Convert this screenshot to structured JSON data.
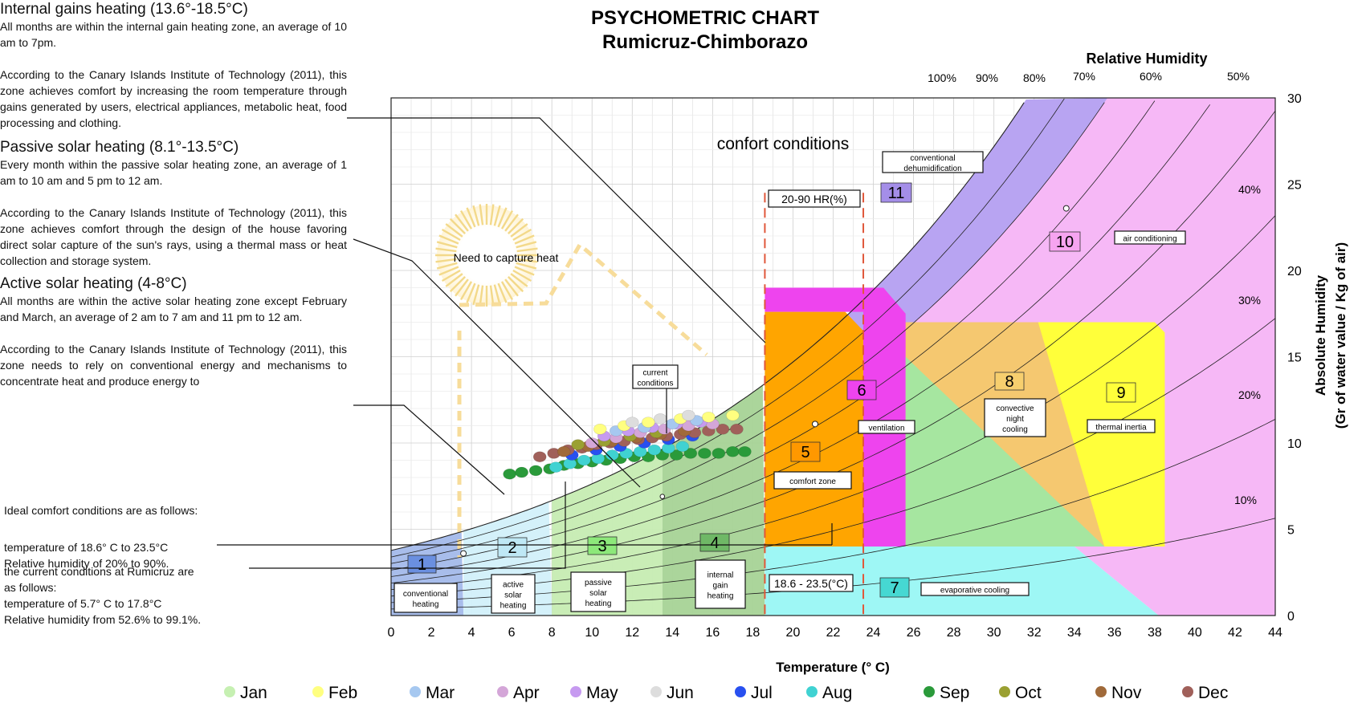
{
  "chart_data": {
    "type": "scatter",
    "title": "PSYCHOMETRIC CHART",
    "subtitle": "Rumicruz-Chimborazo",
    "xlabel": "Temperature (° C)",
    "ylabel": "Absolute Humidity",
    "ylabel2": "(Gr of water value / Kg of air)",
    "rh_axis_title": "Relative Humidity",
    "xlim": [
      0,
      44
    ],
    "ylim": [
      0,
      30
    ],
    "x_ticks": [
      "0",
      "2",
      "4",
      "6",
      "8",
      "10",
      "12",
      "14",
      "16",
      "18",
      "20",
      "22",
      "24",
      "26",
      "28",
      "30",
      "32",
      "34",
      "36",
      "38",
      "40",
      "42",
      "44"
    ],
    "y_ticks": [
      "0",
      "5",
      "10",
      "15",
      "20",
      "25",
      "30"
    ],
    "rh_curves": [
      {
        "label": "100%",
        "rh": 100
      },
      {
        "label": "90%",
        "rh": 90
      },
      {
        "label": "80%",
        "rh": 80
      },
      {
        "label": "70%",
        "rh": 70
      },
      {
        "label": "60%",
        "rh": 60
      },
      {
        "label": "50%",
        "rh": 50
      },
      {
        "label": "40%",
        "rh": 40
      },
      {
        "label": "30%",
        "rh": 30
      },
      {
        "label": "20%",
        "rh": 20
      },
      {
        "label": "10%",
        "rh": 10
      }
    ],
    "comfort_title": "confort conditions",
    "sun_label": "Need to capture heat",
    "rh_range_label": "20-90 HR(%)",
    "temp_range_label": "18.6 - 23.5(°C)",
    "comfort_bounds": {
      "t_min": 18.6,
      "t_max": 23.5
    },
    "zones": [
      {
        "num": "1",
        "label_lines": [
          "conventional",
          "heating"
        ],
        "color": "#b4c8ee"
      },
      {
        "num": "2",
        "label_lines": [
          "active",
          "solar",
          "heating"
        ],
        "color": "#d2f0fa"
      },
      {
        "num": "3",
        "label_lines": [
          "passive",
          "solar",
          "heating"
        ],
        "color": "#c6ecb2"
      },
      {
        "num": "4",
        "label_lines": [
          "internal",
          "gain",
          "heating"
        ],
        "color": "#a6d396"
      },
      {
        "num": "5",
        "label_lines": [
          "comfort zone"
        ],
        "color": "#ffa500"
      },
      {
        "num": "6",
        "label_lines": [
          "ventilation"
        ],
        "color": "#ee44ee"
      },
      {
        "num": "7",
        "label_lines": [
          "evaporative cooling"
        ],
        "color": "#9ef7f5"
      },
      {
        "num": "8",
        "label_lines": [
          "convective",
          "night",
          "cooling"
        ],
        "color": "#f5c870"
      },
      {
        "num": "9",
        "label_lines": [
          "thermal inertia"
        ],
        "color": "#ffff3a"
      },
      {
        "num": "10",
        "label_lines": [
          "air conditioning"
        ],
        "color": "#f6b8f6"
      },
      {
        "num": "11",
        "label_lines": [
          "conventional",
          "dehumidification"
        ],
        "color": "#b8a4f2"
      }
    ],
    "current_conditions_label_lines": [
      "current",
      "conditions"
    ],
    "months": [
      {
        "name": "Jan",
        "color": "#c6f0b2"
      },
      {
        "name": "Feb",
        "color": "#ffff80"
      },
      {
        "name": "Mar",
        "color": "#a6c8f0"
      },
      {
        "name": "Apr",
        "color": "#d4a6d8"
      },
      {
        "name": "May",
        "color": "#c69af0"
      },
      {
        "name": "Jun",
        "color": "#dddddd"
      },
      {
        "name": "Jul",
        "color": "#2850f0"
      },
      {
        "name": "Aug",
        "color": "#40d2d2"
      },
      {
        "name": "Sep",
        "color": "#2a9a3a"
      },
      {
        "name": "Oct",
        "color": "#9aa032"
      },
      {
        "name": "Nov",
        "color": "#a06a3a"
      },
      {
        "name": "Dec",
        "color": "#a0605a"
      }
    ],
    "series": [
      {
        "name": "Sep",
        "color": "#2a9a3a",
        "points": [
          [
            5.9,
            8.2
          ],
          [
            6.5,
            8.3
          ],
          [
            7.2,
            8.4
          ],
          [
            7.9,
            8.5
          ],
          [
            8.6,
            8.7
          ],
          [
            9.3,
            8.8
          ],
          [
            10.0,
            8.9
          ],
          [
            10.7,
            9.0
          ],
          [
            11.4,
            9.1
          ],
          [
            12.1,
            9.2
          ],
          [
            12.8,
            9.2
          ],
          [
            13.5,
            9.3
          ],
          [
            14.2,
            9.3
          ],
          [
            14.9,
            9.4
          ],
          [
            15.6,
            9.4
          ],
          [
            16.3,
            9.4
          ],
          [
            17.0,
            9.5
          ],
          [
            17.6,
            9.5
          ]
        ]
      },
      {
        "name": "Aug",
        "color": "#40d2d2",
        "points": [
          [
            8.2,
            8.6
          ],
          [
            8.9,
            8.8
          ],
          [
            9.6,
            9.0
          ],
          [
            10.3,
            9.1
          ],
          [
            11.0,
            9.3
          ],
          [
            11.7,
            9.4
          ],
          [
            12.4,
            9.5
          ],
          [
            13.1,
            9.6
          ],
          [
            13.8,
            9.7
          ],
          [
            14.5,
            9.8
          ]
        ]
      },
      {
        "name": "Jul",
        "color": "#2850f0",
        "points": [
          [
            9.0,
            9.3
          ],
          [
            10.2,
            9.6
          ],
          [
            11.4,
            9.8
          ],
          [
            12.6,
            10.0
          ],
          [
            13.8,
            10.2
          ],
          [
            15.0,
            10.4
          ]
        ]
      },
      {
        "name": "Dec",
        "color": "#a0605a",
        "points": [
          [
            7.4,
            9.2
          ],
          [
            8.1,
            9.4
          ],
          [
            8.8,
            9.6
          ],
          [
            9.5,
            9.7
          ],
          [
            10.2,
            9.9
          ],
          [
            10.9,
            10.0
          ],
          [
            11.6,
            10.1
          ],
          [
            12.3,
            10.2
          ],
          [
            13.0,
            10.3
          ],
          [
            13.7,
            10.4
          ],
          [
            14.4,
            10.5
          ],
          [
            15.1,
            10.6
          ],
          [
            15.8,
            10.7
          ],
          [
            16.5,
            10.8
          ],
          [
            17.2,
            10.8
          ]
        ]
      },
      {
        "name": "Nov",
        "color": "#a06a3a",
        "points": [
          [
            8.6,
            9.5
          ],
          [
            9.8,
            9.8
          ],
          [
            11.0,
            10.1
          ],
          [
            12.2,
            10.3
          ],
          [
            13.4,
            10.5
          ],
          [
            14.6,
            10.7
          ]
        ]
      },
      {
        "name": "Oct",
        "color": "#9aa032",
        "points": [
          [
            9.3,
            9.9
          ],
          [
            10.6,
            10.1
          ],
          [
            11.9,
            10.4
          ],
          [
            13.2,
            10.6
          ]
        ]
      },
      {
        "name": "Apr",
        "color": "#d4a6d8",
        "points": [
          [
            10.0,
            10.0
          ],
          [
            11.2,
            10.3
          ],
          [
            12.4,
            10.6
          ],
          [
            13.6,
            10.8
          ],
          [
            14.8,
            11.0
          ],
          [
            16.0,
            11.1
          ]
        ]
      },
      {
        "name": "May",
        "color": "#c69af0",
        "points": [
          [
            10.6,
            10.4
          ],
          [
            11.8,
            10.7
          ],
          [
            13.0,
            10.9
          ],
          [
            14.2,
            11.1
          ],
          [
            15.4,
            11.2
          ]
        ]
      },
      {
        "name": "Mar",
        "color": "#a6c8f0",
        "points": [
          [
            11.2,
            10.7
          ],
          [
            12.6,
            10.9
          ],
          [
            14.0,
            11.1
          ],
          [
            15.2,
            11.3
          ]
        ]
      },
      {
        "name": "Feb",
        "color": "#ffff80",
        "points": [
          [
            10.4,
            10.8
          ],
          [
            11.6,
            11.0
          ],
          [
            12.8,
            11.2
          ],
          [
            14.4,
            11.4
          ],
          [
            15.8,
            11.5
          ],
          [
            17.0,
            11.6
          ]
        ]
      },
      {
        "name": "Jun",
        "color": "#dddddd",
        "points": [
          [
            12.0,
            11.2
          ],
          [
            13.4,
            11.4
          ],
          [
            14.8,
            11.6
          ]
        ]
      }
    ]
  },
  "left_panel": {
    "sections": [
      {
        "title": "Internal gains heating (13.6°-18.5°C)",
        "paragraphs": [
          "All months are within the internal gain heating zone, an average of 10 am to 7pm.",
          "According to the Canary Islands Institute of Technology (2011), this zone achieves comfort by increasing the room temperature through gains generated by users, electrical appliances, metabolic heat, food processing and clothing."
        ]
      },
      {
        "title": "Passive solar heating (8.1°-13.5°C)",
        "paragraphs": [
          "Every month within the passive solar heating zone, an average of 1 am to 10 am and 5 pm to 12 am.",
          "According to the Canary Islands Institute of Technology (2011), this zone achieves comfort through the design of the house favoring direct solar capture of the sun's rays, using a thermal mass or heat collection and storage system."
        ]
      },
      {
        "title": "Active solar heating (4-8°C)",
        "paragraphs": [
          "All months are within the active solar heating zone except February and March, an average of 2 am to 7 am and 11 pm to 12 am.",
          "According to the Canary Islands Institute of Technology (2011), this zone needs to rely on conventional energy and mechanisms to concentrate heat and produce energy to"
        ]
      }
    ],
    "ideal_title": "Ideal comfort conditions are as follows:",
    "ideal_lines": [
      "temperature of 18.6° C to 23.5°C",
      "Relative humidity of 20% to 90%."
    ],
    "current_lines": [
      "the current conditions at Rumicruz are",
      "as follows:",
      "temperature of 5.7° C to 17.8°C",
      "Relative humidity from 52.6% to 99.1%."
    ]
  }
}
